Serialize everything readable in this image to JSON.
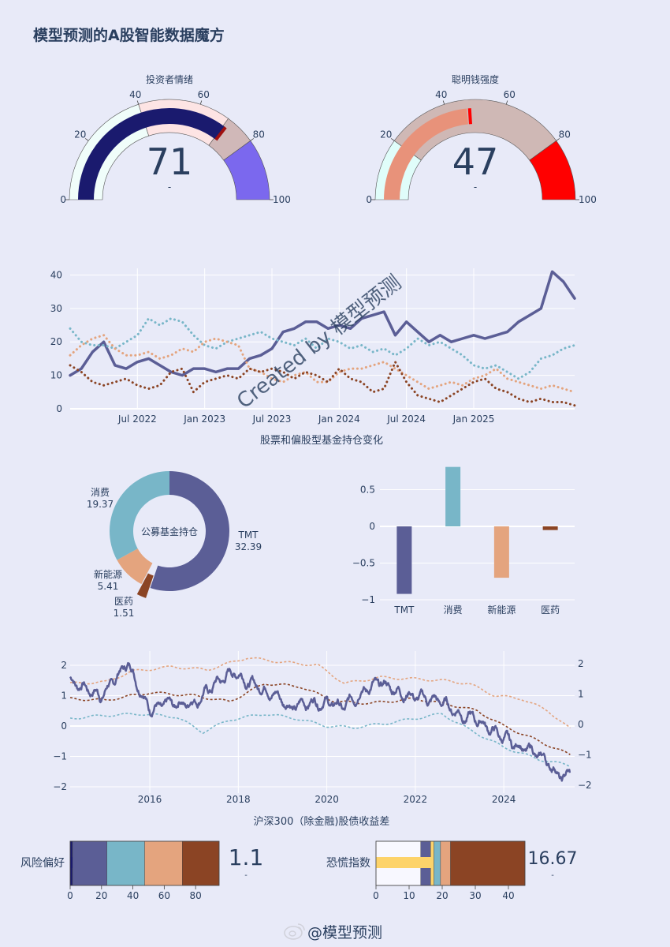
{
  "page": {
    "title": "模型预测的A股智能数据魔方"
  },
  "colors": {
    "navy": "#1a1a6e",
    "slate": "#5b5e96",
    "teal": "#78b6c8",
    "peach": "#e4a47e",
    "brown": "#8b4424",
    "salmon": "#e8927a",
    "grid": "#ffffff",
    "gold": "#fdd36a",
    "purple": "#7b68ee",
    "red": "#ff0000"
  },
  "watermark": {
    "created": "Created by 模型预测",
    "weibo": "@模型预测"
  },
  "chart_data": [
    {
      "type": "gauge",
      "id": "g1",
      "title": "投资者情绪",
      "value": 71,
      "delta": "-",
      "range": [
        0,
        100
      ],
      "ticks": [
        "0",
        "20",
        "40",
        "60",
        "80",
        "100"
      ],
      "steps": [
        {
          "range": [
            0,
            40
          ],
          "color": "#f0fdfa"
        },
        {
          "range": [
            40,
            70
          ],
          "color": "#fde4e4"
        },
        {
          "range": [
            70,
            80
          ],
          "color": "#d0b8b8"
        },
        {
          "range": [
            80,
            100
          ],
          "color": "#7b68ee"
        }
      ],
      "bar_color": "#1a1a6e",
      "threshold": 71,
      "threshold_color": "#a01010"
    },
    {
      "type": "gauge",
      "id": "g2",
      "title": "聪明钱强度",
      "value": 47,
      "delta": "-",
      "range": [
        0,
        100
      ],
      "ticks": [
        "0",
        "20",
        "40",
        "60",
        "80",
        "100"
      ],
      "steps": [
        {
          "range": [
            0,
            20
          ],
          "color": "#e0fdfa"
        },
        {
          "range": [
            20,
            80
          ],
          "color": "#cfb8b5"
        },
        {
          "range": [
            80,
            100
          ],
          "color": "#ff0000"
        }
      ],
      "bar_color": "#e8927a",
      "threshold": 48,
      "threshold_color": "#ff0000"
    },
    {
      "type": "line",
      "id": "holdings",
      "xlabel": "股票和偏股型基金持仓变化",
      "x_range": [
        0,
        45
      ],
      "x_ticks": [
        {
          "pos": 6,
          "label": "Jul 2022"
        },
        {
          "pos": 12,
          "label": "Jan 2023"
        },
        {
          "pos": 18,
          "label": "Jul 2023"
        },
        {
          "pos": 24,
          "label": "Jan 2024"
        },
        {
          "pos": 30,
          "label": "Jul 2024"
        },
        {
          "pos": 36,
          "label": "Jan 2025"
        }
      ],
      "ylim": [
        0,
        42
      ],
      "y_ticks": [
        0,
        10,
        20,
        30,
        40
      ],
      "series": [
        {
          "name": "TMT",
          "color": "#5b5e96",
          "dash": "solid",
          "width": 3.5,
          "values": [
            10,
            12,
            17,
            20,
            13,
            12,
            14,
            15,
            13,
            11,
            10,
            12,
            12,
            11,
            12,
            12,
            15,
            16,
            18,
            23,
            24,
            26,
            26,
            24,
            25,
            24,
            27,
            28,
            29,
            22,
            26,
            23,
            20,
            22,
            20,
            21,
            22,
            21,
            22,
            23,
            26,
            28,
            30,
            41,
            38,
            33
          ]
        },
        {
          "name": "消费",
          "color": "#78b6c8",
          "dash": "dot",
          "width": 3,
          "values": [
            24,
            20,
            19,
            19,
            18,
            20,
            22,
            27,
            25,
            27,
            26,
            22,
            19,
            18,
            20,
            21,
            22,
            23,
            21,
            20,
            19,
            21,
            18,
            21,
            20,
            18,
            19,
            17,
            18,
            16,
            18,
            21,
            19,
            20,
            18,
            16,
            13,
            12,
            13,
            11,
            9,
            11,
            15,
            16,
            18,
            19
          ]
        },
        {
          "name": "新能源",
          "color": "#e4a47e",
          "dash": "dot",
          "width": 3,
          "values": [
            16,
            19,
            21,
            22,
            18,
            16,
            16,
            17,
            15,
            16,
            18,
            17,
            20,
            21,
            20,
            19,
            12,
            11,
            9,
            8,
            10,
            11,
            8,
            8,
            11,
            12,
            12,
            13,
            14,
            12,
            10,
            8,
            6,
            7,
            8,
            7,
            9,
            10,
            12,
            9,
            8,
            7,
            6,
            7,
            6,
            5
          ]
        },
        {
          "name": "医药",
          "color": "#8b4424",
          "dash": "dot",
          "width": 3,
          "values": [
            13,
            11,
            8,
            7,
            8,
            9,
            7,
            6,
            7,
            11,
            12,
            5,
            8,
            9,
            10,
            9,
            12,
            11,
            12,
            11,
            9,
            11,
            10,
            8,
            12,
            9,
            8,
            5,
            6,
            14,
            8,
            4,
            3,
            2,
            4,
            6,
            8,
            9,
            6,
            5,
            3,
            2,
            3,
            2,
            2,
            1
          ]
        }
      ]
    },
    {
      "type": "pie",
      "id": "pie",
      "hole_label": "公募基金持仓",
      "slices": [
        {
          "label": "TMT",
          "value": 32.39,
          "value_label": "32.39",
          "color": "#5b5e96"
        },
        {
          "label": "医药",
          "value": 1.51,
          "value_label": "1.51",
          "color": "#8b4424",
          "pulled": true
        },
        {
          "label": "新能源",
          "value": 5.41,
          "value_label": "5.41",
          "color": "#e4a47e"
        },
        {
          "label": "消费",
          "value": 19.37,
          "value_label": "19.37",
          "color": "#78b6c8"
        }
      ]
    },
    {
      "type": "bar",
      "id": "bars",
      "categories": [
        "TMT",
        "消费",
        "新能源",
        "医药"
      ],
      "values": [
        -0.92,
        0.81,
        -0.7,
        -0.05
      ],
      "colors": [
        "#5b5e96",
        "#78b6c8",
        "#e4a47e",
        "#8b4424"
      ],
      "ylim": [
        -1,
        1
      ],
      "y_ticks": [
        {
          "v": 0.5,
          "label": "0.5"
        },
        {
          "v": 0,
          "label": "0"
        },
        {
          "v": -0.5,
          "label": "−0.5"
        },
        {
          "v": -1,
          "label": "−1"
        }
      ]
    },
    {
      "type": "line",
      "id": "spread",
      "xlabel": "沪深300（除金融)股债收益差",
      "x_range": [
        2014.2,
        2025.6
      ],
      "x_ticks": [
        {
          "pos": 2016,
          "label": "2016"
        },
        {
          "pos": 2018,
          "label": "2018"
        },
        {
          "pos": 2020,
          "label": "2020"
        },
        {
          "pos": 2022,
          "label": "2022"
        },
        {
          "pos": 2024,
          "label": "2024"
        }
      ],
      "ylim": [
        -2.3,
        2.3
      ],
      "y_ticks_left": [
        {
          "v": 2,
          "label": "2"
        },
        {
          "v": 1,
          "label": "1"
        },
        {
          "v": 0,
          "label": "0"
        },
        {
          "v": -1,
          "label": "−1"
        },
        {
          "v": -2,
          "label": "−2"
        }
      ],
      "y_ticks_right": [
        {
          "v": 2,
          "label": "2"
        },
        {
          "v": 1,
          "label": "1"
        },
        {
          "v": 0,
          "label": "0"
        },
        {
          "v": -1,
          "label": "−1"
        },
        {
          "v": -2,
          "label": "−2"
        }
      ],
      "main": {
        "color": "#5b5e96",
        "width": 2.5,
        "noise": 0.15,
        "anchors": [
          [
            2014.2,
            1.5
          ],
          [
            2014.5,
            1.3
          ],
          [
            2014.9,
            1.0
          ],
          [
            2015.2,
            1.5
          ],
          [
            2015.5,
            2.1
          ],
          [
            2015.8,
            1.2
          ],
          [
            2016.0,
            0.6
          ],
          [
            2016.5,
            0.7
          ],
          [
            2017.0,
            0.8
          ],
          [
            2017.5,
            1.4
          ],
          [
            2017.9,
            1.8
          ],
          [
            2018.3,
            1.4
          ],
          [
            2018.8,
            1.1
          ],
          [
            2019.2,
            0.6
          ],
          [
            2019.6,
            0.8
          ],
          [
            2020.0,
            0.8
          ],
          [
            2020.4,
            0.6
          ],
          [
            2020.8,
            1.2
          ],
          [
            2021.2,
            1.4
          ],
          [
            2021.7,
            1.1
          ],
          [
            2022.2,
            0.9
          ],
          [
            2022.6,
            0.8
          ],
          [
            2023.0,
            0.4
          ],
          [
            2023.4,
            0.2
          ],
          [
            2023.8,
            -0.2
          ],
          [
            2024.2,
            -0.6
          ],
          [
            2024.6,
            -0.8
          ],
          [
            2025.0,
            -1.2
          ],
          [
            2025.3,
            -1.7
          ],
          [
            2025.5,
            -1.6
          ]
        ]
      },
      "bands": [
        {
          "name": "upper",
          "color": "#e4a47e",
          "width": 1.6,
          "dash": "3,2.5",
          "anchors": [
            [
              2014.2,
              1.4
            ],
            [
              2015.0,
              1.45
            ],
            [
              2015.6,
              1.8
            ],
            [
              2016.5,
              1.95
            ],
            [
              2017.3,
              1.85
            ],
            [
              2018.2,
              2.25
            ],
            [
              2019.0,
              2.1
            ],
            [
              2019.8,
              2.0
            ],
            [
              2020.4,
              1.4
            ],
            [
              2021.2,
              1.6
            ],
            [
              2022.0,
              1.55
            ],
            [
              2022.6,
              1.5
            ],
            [
              2023.2,
              1.4
            ],
            [
              2023.8,
              1.0
            ],
            [
              2024.4,
              0.9
            ],
            [
              2025.0,
              0.5
            ],
            [
              2025.5,
              -0.1
            ]
          ]
        },
        {
          "name": "mid",
          "color": "#8b4424",
          "width": 1.6,
          "dash": "3,2.5",
          "anchors": [
            [
              2014.2,
              0.9
            ],
            [
              2015.0,
              0.85
            ],
            [
              2016.0,
              1.1
            ],
            [
              2017.0,
              1.0
            ],
            [
              2017.8,
              0.8
            ],
            [
              2018.6,
              1.4
            ],
            [
              2019.4,
              1.3
            ],
            [
              2020.2,
              0.8
            ],
            [
              2021.0,
              0.75
            ],
            [
              2022.0,
              0.9
            ],
            [
              2022.8,
              0.7
            ],
            [
              2023.4,
              0.5
            ],
            [
              2024.0,
              0.0
            ],
            [
              2024.8,
              -0.5
            ],
            [
              2025.5,
              -0.95
            ]
          ]
        },
        {
          "name": "lower",
          "color": "#78b6c8",
          "width": 1.6,
          "dash": "3,2.5",
          "anchors": [
            [
              2014.2,
              0.25
            ],
            [
              2015.0,
              0.35
            ],
            [
              2015.8,
              0.4
            ],
            [
              2016.6,
              0.3
            ],
            [
              2017.2,
              -0.2
            ],
            [
              2017.8,
              0.2
            ],
            [
              2018.6,
              0.4
            ],
            [
              2019.3,
              0.25
            ],
            [
              2020.0,
              0.0
            ],
            [
              2020.6,
              -0.05
            ],
            [
              2021.4,
              0.1
            ],
            [
              2022.0,
              0.25
            ],
            [
              2022.6,
              0.4
            ],
            [
              2023.2,
              -0.1
            ],
            [
              2024.0,
              -0.7
            ],
            [
              2024.8,
              -1.1
            ],
            [
              2025.5,
              -1.3
            ]
          ]
        }
      ]
    },
    {
      "type": "bullet",
      "id": "b1",
      "label": "风险偏好",
      "value": 1.1,
      "value_label": "1.1",
      "delta": "-",
      "range": [
        0,
        95
      ],
      "ticks": [
        0,
        20,
        40,
        60,
        80
      ],
      "steps": [
        {
          "range": [
            0,
            1.5
          ],
          "color": "#1a1a6e"
        },
        {
          "range": [
            1.5,
            23.5
          ],
          "color": "#5b5e96"
        },
        {
          "range": [
            23.5,
            47.5
          ],
          "color": "#78b6c8"
        },
        {
          "range": [
            47.5,
            71.5
          ],
          "color": "#e4a47e"
        },
        {
          "range": [
            71.5,
            95
          ],
          "color": "#8b4424"
        }
      ],
      "bar_value": 1.1,
      "bar_color": "#1a1a6e"
    },
    {
      "type": "bullet",
      "id": "b2",
      "label": "恐慌指数",
      "value": 16.67,
      "value_label": "16.67",
      "delta": "-",
      "range": [
        0,
        45
      ],
      "ticks": [
        0,
        10,
        20,
        30,
        40
      ],
      "steps": [
        {
          "range": [
            0,
            13.5
          ],
          "color": "#f8f8ff"
        },
        {
          "range": [
            13.5,
            16.5
          ],
          "color": "#5b5e96"
        },
        {
          "range": [
            16.5,
            17.5
          ],
          "color": "#fdd36a"
        },
        {
          "range": [
            17.5,
            19.5
          ],
          "color": "#78b6c8"
        },
        {
          "range": [
            19.5,
            22.5
          ],
          "color": "#e4a47e"
        },
        {
          "range": [
            22.5,
            45
          ],
          "color": "#8b4424"
        }
      ],
      "bar_value": 16.67,
      "bar_color": "#fdd36a"
    }
  ]
}
